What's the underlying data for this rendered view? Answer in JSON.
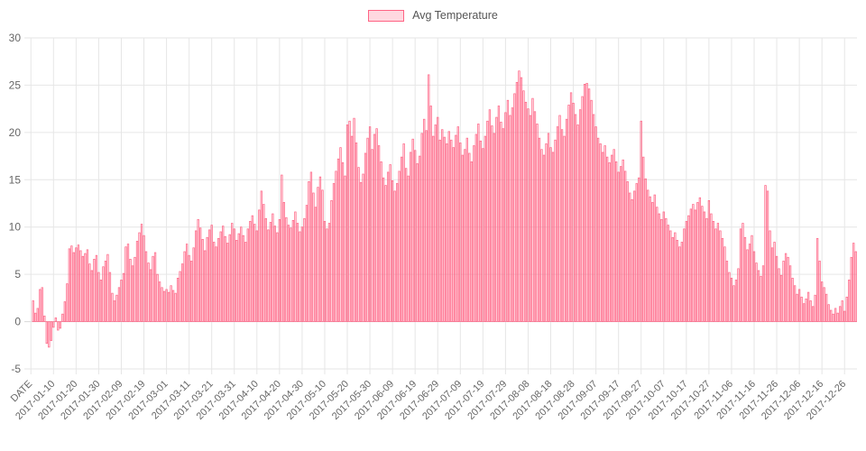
{
  "legend": {
    "label": "Avg Temperature"
  },
  "chart_data": {
    "type": "bar",
    "title": "",
    "series_name": "Avg Temperature",
    "xlabel": "DATE",
    "ylabel": "",
    "ylim": [
      -5,
      30
    ],
    "y_ticks": [
      -5,
      0,
      5,
      10,
      15,
      20,
      25,
      30
    ],
    "grid": true,
    "legend_position": "top",
    "bar_border_color": "#ff6384",
    "bar_fill_color": "rgba(255,99,132,0.22)",
    "grid_color": "#e6e6e6",
    "zero_line_color": "#d8d8d8",
    "tick_text_color": "#666666",
    "x_tick_step": 10,
    "x_tick_labels": [
      "DATE",
      "2017-01-10",
      "2017-01-20",
      "2017-01-30",
      "2017-02-09",
      "2017-02-19",
      "2017-03-01",
      "2017-03-11",
      "2017-03-21",
      "2017-03-31",
      "2017-04-10",
      "2017-04-20",
      "2017-04-30",
      "2017-05-10",
      "2017-05-20",
      "2017-05-30",
      "2017-06-09",
      "2017-06-19",
      "2017-06-29",
      "2017-07-09",
      "2017-07-19",
      "2017-07-29",
      "2017-08-08",
      "2017-08-18",
      "2017-08-28",
      "2017-09-07",
      "2017-09-17",
      "2017-09-27",
      "2017-10-07",
      "2017-10-17",
      "2017-10-27",
      "2017-11-06",
      "2017-11-16",
      "2017-11-26",
      "2017-12-06",
      "2017-12-16",
      "2017-12-26"
    ],
    "values": [
      2.2,
      0.9,
      1.4,
      3.4,
      3.6,
      0.6,
      -2.3,
      -2.7,
      -2.0,
      -0.6,
      0.4,
      -0.9,
      -0.7,
      0.8,
      2.1,
      4.0,
      7.7,
      8.0,
      7.3,
      7.8,
      8.1,
      7.5,
      6.9,
      7.2,
      7.6,
      6.1,
      5.4,
      6.6,
      7.0,
      5.2,
      4.4,
      5.8,
      6.4,
      7.1,
      5.2,
      3.0,
      2.2,
      2.8,
      3.6,
      4.4,
      5.1,
      7.9,
      8.2,
      6.6,
      5.9,
      6.8,
      8.5,
      9.4,
      10.3,
      9.1,
      7.4,
      6.2,
      5.5,
      6.9,
      7.3,
      5.0,
      4.2,
      3.6,
      3.2,
      3.4,
      3.1,
      3.8,
      3.3,
      3.0,
      4.6,
      5.3,
      6.1,
      7.4,
      8.2,
      7.0,
      6.4,
      7.8,
      9.6,
      10.8,
      9.9,
      8.7,
      7.5,
      8.9,
      9.7,
      10.2,
      8.4,
      7.9,
      8.8,
      9.5,
      10.1,
      9.0,
      8.3,
      9.2,
      10.4,
      9.8,
      8.6,
      9.3,
      10.0,
      9.1,
      8.4,
      9.8,
      10.6,
      11.2,
      10.3,
      9.6,
      11.8,
      13.8,
      12.4,
      10.9,
      9.7,
      10.5,
      11.4,
      10.1,
      9.4,
      10.8,
      15.5,
      12.6,
      11.0,
      10.2,
      9.9,
      10.7,
      11.6,
      10.4,
      9.5,
      10.0,
      10.9,
      12.3,
      14.8,
      15.8,
      13.6,
      12.1,
      14.2,
      15.3,
      13.9,
      10.6,
      9.8,
      10.4,
      12.8,
      14.6,
      15.9,
      17.2,
      18.4,
      16.8,
      15.4,
      20.8,
      21.2,
      19.6,
      21.5,
      18.9,
      16.3,
      14.7,
      15.6,
      17.8,
      19.4,
      20.6,
      18.2,
      19.8,
      20.4,
      18.6,
      16.9,
      15.2,
      14.4,
      15.8,
      16.6,
      14.9,
      13.8,
      14.6,
      15.9,
      17.4,
      18.8,
      16.2,
      15.4,
      17.9,
      19.3,
      18.1,
      16.7,
      17.5,
      19.9,
      21.4,
      20.2,
      26.1,
      22.8,
      19.6,
      20.8,
      21.6,
      19.2,
      20.3,
      19.5,
      18.8,
      20.1,
      19.2,
      18.4,
      19.7,
      20.6,
      18.9,
      17.6,
      18.2,
      19.4,
      17.8,
      16.9,
      18.6,
      19.8,
      20.9,
      19.1,
      18.3,
      19.6,
      21.2,
      22.4,
      20.7,
      19.9,
      21.6,
      22.8,
      21.1,
      20.4,
      22.1,
      23.4,
      21.8,
      22.6,
      24.1,
      25.3,
      26.5,
      25.8,
      24.4,
      23.2,
      22.5,
      21.8,
      23.6,
      22.2,
      20.9,
      19.4,
      18.2,
      17.6,
      18.8,
      19.9,
      18.4,
      17.9,
      19.2,
      20.6,
      21.8,
      20.3,
      19.6,
      21.4,
      22.9,
      24.2,
      23.1,
      21.9,
      20.8,
      22.4,
      23.8,
      25.1,
      25.2,
      24.6,
      23.4,
      21.9,
      20.6,
      19.4,
      18.8,
      17.9,
      18.6,
      17.4,
      16.8,
      17.6,
      18.2,
      16.9,
      15.8,
      16.4,
      17.1,
      15.9,
      14.8,
      13.6,
      12.9,
      13.8,
      14.6,
      15.2,
      21.2,
      17.4,
      15.1,
      13.9,
      13.2,
      12.6,
      13.4,
      12.1,
      11.4,
      10.8,
      11.6,
      10.9,
      10.2,
      9.6,
      8.9,
      9.4,
      8.6,
      7.9,
      8.4,
      9.8,
      10.6,
      11.2,
      11.9,
      12.4,
      11.8,
      12.6,
      13.1,
      12.2,
      11.6,
      10.9,
      12.8,
      11.4,
      10.6,
      9.8,
      10.4,
      9.6,
      8.8,
      7.9,
      6.4,
      5.2,
      4.6,
      3.8,
      4.4,
      5.6,
      9.8,
      10.4,
      8.9,
      7.6,
      8.2,
      9.1,
      7.4,
      6.2,
      5.4,
      4.8,
      5.9,
      14.4,
      13.8,
      9.6,
      7.8,
      8.4,
      6.9,
      5.6,
      4.9,
      6.4,
      7.2,
      6.8,
      5.9,
      4.6,
      3.8,
      2.9,
      3.4,
      2.6,
      1.9,
      2.4,
      3.1,
      2.2,
      1.6,
      2.8,
      8.8,
      6.4,
      4.2,
      3.6,
      2.9,
      1.8,
      1.2,
      0.8,
      1.4,
      0.9,
      1.6,
      2.2,
      1.1,
      2.6,
      4.4,
      6.8,
      8.3,
      7.4
    ]
  }
}
